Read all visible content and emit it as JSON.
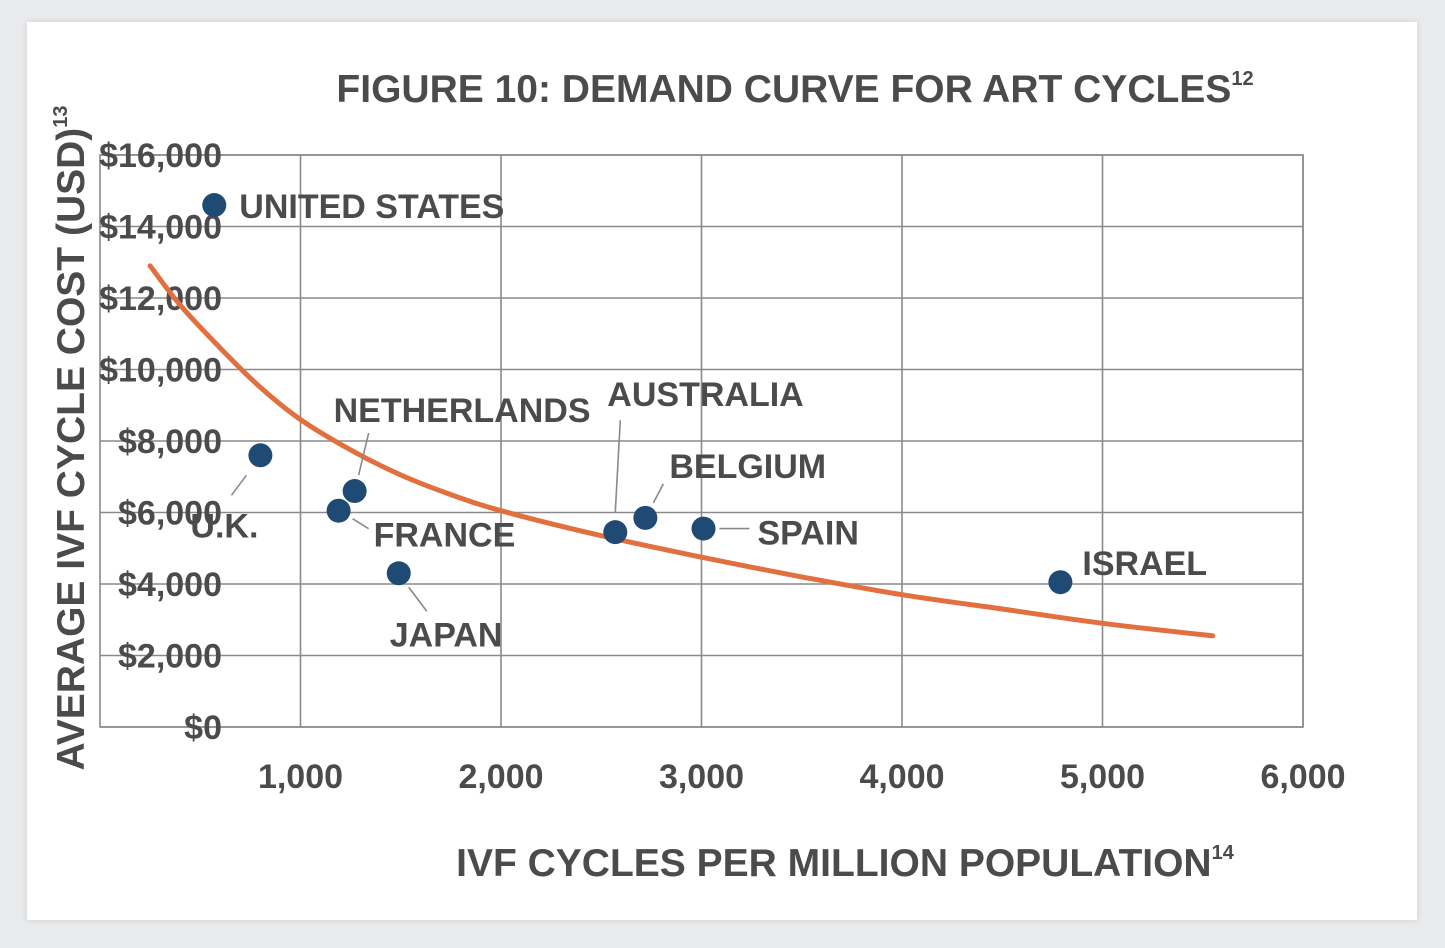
{
  "chart_data": {
    "type": "scatter",
    "title": "FIGURE 10: DEMAND CURVE FOR ART CYCLES",
    "title_sup": "12",
    "xlabel": "IVF CYCLES PER MILLION POPULATION",
    "xlabel_sup": "14",
    "ylabel": "AVERAGE IVF CYCLE COST (USD)",
    "ylabel_sup": "13",
    "xlim": [
      0,
      6000
    ],
    "ylim": [
      0,
      16000
    ],
    "x_ticks": [
      1000,
      2000,
      3000,
      4000,
      5000,
      6000
    ],
    "x_tick_labels": [
      "1,000",
      "2,000",
      "3,000",
      "4,000",
      "5,000",
      "6,000"
    ],
    "y_ticks": [
      0,
      2000,
      4000,
      6000,
      8000,
      10000,
      12000,
      14000,
      16000
    ],
    "y_tick_labels": [
      "$0",
      "$2,000",
      "$4,000",
      "$6,000",
      "$8,000",
      "$10,000",
      "$12,000",
      "$14,000",
      "$16,000"
    ],
    "grid": true,
    "point_color": "#1f4a73",
    "curve_color": "#e2703f",
    "points": [
      {
        "label": "UNITED STATES",
        "x": 570,
        "y": 14600
      },
      {
        "label": "U.K.",
        "x": 800,
        "y": 7600
      },
      {
        "label": "NETHERLANDS",
        "x": 1270,
        "y": 6600
      },
      {
        "label": "FRANCE",
        "x": 1190,
        "y": 6050
      },
      {
        "label": "JAPAN",
        "x": 1490,
        "y": 4300
      },
      {
        "label": "AUSTRALIA",
        "x": 2570,
        "y": 5450
      },
      {
        "label": "BELGIUM",
        "x": 2720,
        "y": 5850
      },
      {
        "label": "SPAIN",
        "x": 3010,
        "y": 5550
      },
      {
        "label": "ISRAEL",
        "x": 4790,
        "y": 4050
      }
    ],
    "trend_curve": {
      "x": [
        250,
        400,
        600,
        800,
        1000,
        1250,
        1500,
        1750,
        2000,
        2500,
        3000,
        3500,
        4000,
        4500,
        5000,
        5550
      ],
      "y": [
        12900,
        11800,
        10600,
        9500,
        8600,
        7750,
        7050,
        6500,
        6050,
        5350,
        4750,
        4200,
        3700,
        3300,
        2900,
        2550
      ]
    }
  }
}
